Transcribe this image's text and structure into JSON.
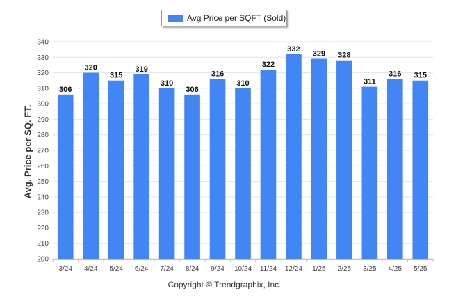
{
  "chart_data": {
    "type": "bar",
    "categories": [
      "3/24",
      "4/24",
      "5/24",
      "6/24",
      "7/24",
      "8/24",
      "9/24",
      "10/24",
      "11/24",
      "12/24",
      "1/25",
      "2/25",
      "3/25",
      "4/25",
      "5/25"
    ],
    "series": [
      {
        "name": "Avg Price per SQFT (Sold)",
        "values": [
          306,
          320,
          315,
          319,
          310,
          306,
          316,
          310,
          322,
          332,
          329,
          328,
          311,
          316,
          315
        ]
      }
    ],
    "ylabel": "Avg. Price per SQ. FT.",
    "xlabel": "",
    "ylim": [
      200,
      340
    ],
    "yticks": [
      200,
      210,
      220,
      230,
      240,
      250,
      260,
      270,
      280,
      290,
      300,
      310,
      320,
      330,
      340
    ],
    "grid": true,
    "legend_position": "top-center",
    "bar_color": "#4285f4",
    "data_labels": true
  },
  "footer": {
    "copyright": "Copyright © Trendgraphix, Inc."
  }
}
